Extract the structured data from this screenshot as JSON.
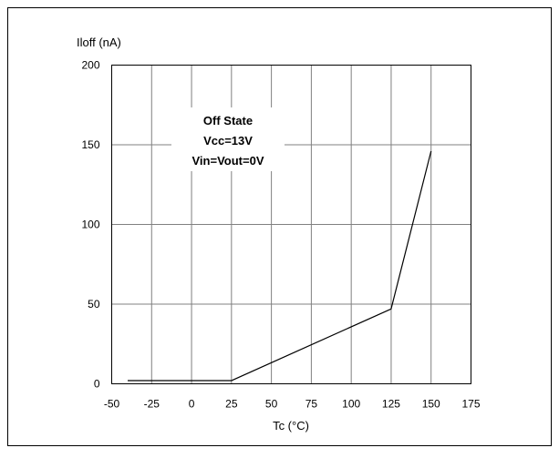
{
  "chart_data": {
    "type": "line",
    "title": "",
    "ylabel": "Iloff (nA)",
    "xlabel": "Tc (°C)",
    "xlim": [
      -50,
      175
    ],
    "ylim": [
      0,
      200
    ],
    "xticks": [
      -50,
      -25,
      0,
      25,
      50,
      75,
      100,
      125,
      150,
      175
    ],
    "yticks": [
      0,
      50,
      100,
      150,
      200
    ],
    "grid": true,
    "annotation": [
      "Off State",
      "Vcc=13V",
      "Vin=Vout=0V"
    ],
    "series": [
      {
        "x": [
          -40,
          25,
          125,
          150
        ],
        "y": [
          2,
          2,
          47,
          146
        ]
      }
    ]
  }
}
